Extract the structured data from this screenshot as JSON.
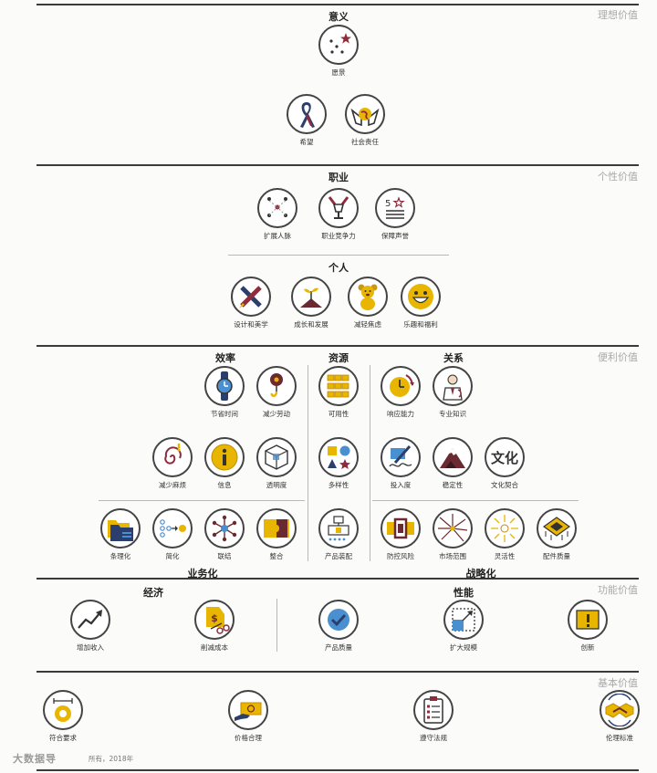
{
  "tiers": [
    {
      "label": "理想价值"
    },
    {
      "label": "个性价值"
    },
    {
      "label": "便利价值"
    },
    {
      "label": "功能价值"
    },
    {
      "label": "基本价值"
    }
  ],
  "sections": {
    "meaning": "意义",
    "career": "职业",
    "personal": "个人",
    "efficiency": "效率",
    "resources": "资源",
    "relations": "关系",
    "business": "业务化",
    "strategic": "战略化",
    "economy": "经济",
    "performance": "性能"
  },
  "items": {
    "vision": "愿景",
    "hope": "希望",
    "social": "社会责任",
    "network": "扩展人脉",
    "compete": "职业竞争力",
    "reputation": "保障声誉",
    "design": "设计和美学",
    "growth": "成长和发展",
    "anxiety": "减轻焦虑",
    "fun": "乐趣和福利",
    "savetime": "节省时间",
    "effort": "减少劳动",
    "availability": "可用性",
    "response": "响应能力",
    "expertise": "专业知识",
    "hassle": "减少麻烦",
    "info": "信息",
    "transparency": "透明度",
    "variety": "多样性",
    "commitment": "投入度",
    "stability": "稳定性",
    "culture": "文化契合",
    "culture_glyph": "文化",
    "organize": "条理化",
    "simplify": "简化",
    "connect": "联结",
    "integrate": "整合",
    "assembly": "产品装配",
    "risk": "防控风险",
    "market": "市场范围",
    "flexible": "灵活性",
    "component": "配件质量",
    "revenue": "增加收入",
    "cost": "削减成本",
    "quality": "产品质量",
    "scale": "扩大规模",
    "innovation": "创新",
    "require": "符合要求",
    "price": "价格合理",
    "law": "遵守法规",
    "ethics": "伦理标准"
  },
  "footer": {
    "watermark": "大数据导",
    "copyright": "所有，2018年"
  }
}
